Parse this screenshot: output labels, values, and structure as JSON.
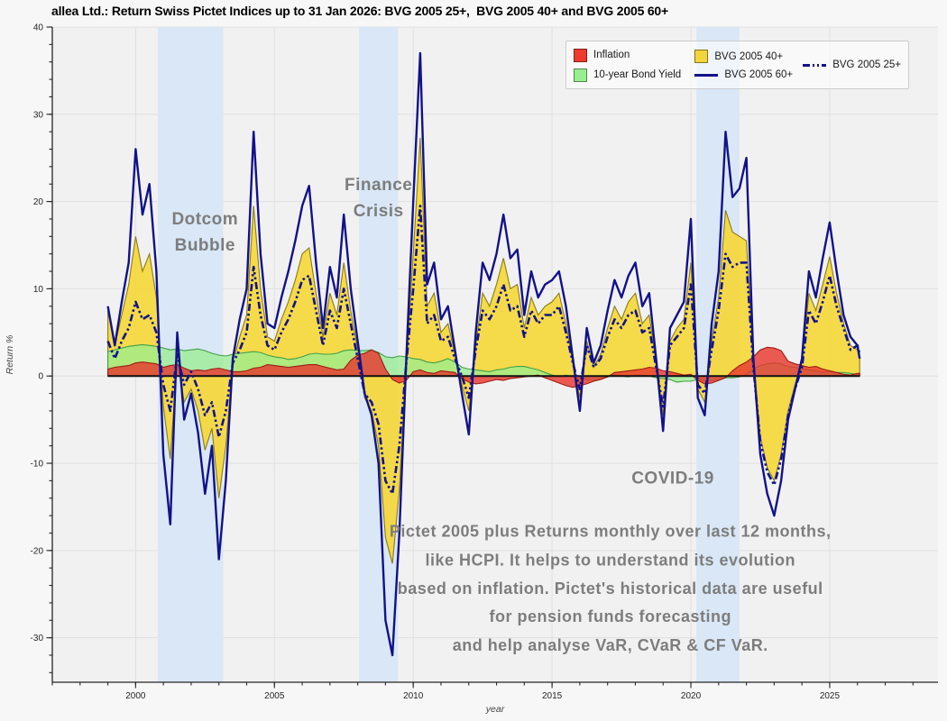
{
  "header": {
    "title": "allea Ltd.: Return Swiss Pictet Indices up to 31 Jan 2026: BVG 2005 25+,  BVG 2005 40+ and BVG 2005 60+"
  },
  "legend": {
    "items": [
      {
        "id": "inflation",
        "label": "Inflation",
        "swatch": "patch",
        "color": "#ee3a31"
      },
      {
        "id": "bond-yield",
        "label": "10-year Bond Yield",
        "swatch": "patch",
        "color": "#98ee90"
      },
      {
        "id": "bvg40",
        "label": "BVG 2005 40+",
        "swatch": "patch",
        "color": "#f2d43c"
      },
      {
        "id": "bvg60",
        "label": "BVG 2005 60+",
        "swatch": "line",
        "color": "#12128a"
      },
      {
        "id": "bvg25",
        "label": "BVG 2005 25+",
        "swatch": "dashline",
        "color": "#12128a"
      }
    ]
  },
  "annotations": [
    {
      "id": "dotcom",
      "lines": [
        "Dotcom",
        "Bubble"
      ],
      "x": 2002.5,
      "y": [
        17.4,
        14.4
      ],
      "size": 19,
      "color": "#7d7d7d"
    },
    {
      "id": "finance-crisis",
      "lines": [
        "Finance",
        "Crisis"
      ],
      "x": 2008.75,
      "y": [
        21.3,
        18.3
      ],
      "size": 19,
      "color": "#7d7d7d"
    },
    {
      "id": "covid",
      "lines": [
        "COVID-19"
      ],
      "x": 2019.35,
      "y": [
        -12.3
      ],
      "size": 19,
      "color": "#7d7d7d"
    },
    {
      "id": "caption",
      "lines": [
        "Pictet 2005 plus Returns monthly over last 12 months,",
        "like HCPI. It helps to understand its evolution",
        "based on inflation. Pictet's historical data are useful",
        "for pension funds forecasting",
        "and help analyse VaR, CVaR & CF VaR."
      ],
      "x": 2017.1,
      "y": [
        -18.4,
        -21.7,
        -25.0,
        -28.2,
        -31.5
      ],
      "size": 18,
      "color": "#7d7d7d"
    }
  ],
  "chart_data": {
    "type": "area+line",
    "title": "allea Ltd.: Return Swiss Pictet Indices up to 31 Jan 2026: BVG 2005 25+,  BVG 2005 40+ and BVG 2005 60+",
    "xlabel": "year",
    "ylabel": "Return %",
    "xlim": [
      1997.0,
      2028.9
    ],
    "ylim": [
      -35.1,
      40
    ],
    "x_ticks": [
      2000,
      2005,
      2010,
      2015,
      2020,
      2025
    ],
    "y_ticks": [
      -30,
      -20,
      -10,
      0,
      10,
      20,
      30,
      40
    ],
    "x_minor_step": 1,
    "y_minor_step": 2,
    "grid": true,
    "legend_position": "upper right",
    "band_color": "#d9e7f6",
    "bands": [
      {
        "label": "Dotcom Bubble",
        "from": 2000.8,
        "to": 2003.15
      },
      {
        "label": "Finance Crisis",
        "from": 2008.05,
        "to": 2009.45
      },
      {
        "label": "COVID-19",
        "from": 2020.2,
        "to": 2021.75
      }
    ],
    "x": [
      1999,
      1999.25,
      1999.5,
      1999.75,
      2000,
      2000.25,
      2000.5,
      2000.75,
      2001,
      2001.25,
      2001.5,
      2001.75,
      2002,
      2002.25,
      2002.5,
      2002.75,
      2003,
      2003.25,
      2003.5,
      2003.75,
      2004,
      2004.25,
      2004.5,
      2004.75,
      2005,
      2005.25,
      2005.5,
      2005.75,
      2006,
      2006.25,
      2006.5,
      2006.75,
      2007,
      2007.25,
      2007.5,
      2007.75,
      2008,
      2008.25,
      2008.5,
      2008.75,
      2009,
      2009.25,
      2009.5,
      2009.75,
      2010,
      2010.25,
      2010.5,
      2010.75,
      2011,
      2011.25,
      2011.5,
      2011.75,
      2012,
      2012.25,
      2012.5,
      2012.75,
      2013,
      2013.25,
      2013.5,
      2013.75,
      2014,
      2014.25,
      2014.5,
      2014.75,
      2015,
      2015.25,
      2015.5,
      2015.75,
      2016,
      2016.25,
      2016.5,
      2016.75,
      2017,
      2017.25,
      2017.5,
      2017.75,
      2018,
      2018.25,
      2018.5,
      2018.75,
      2019,
      2019.25,
      2019.5,
      2019.75,
      2020,
      2020.25,
      2020.5,
      2020.75,
      2021,
      2021.25,
      2021.5,
      2021.75,
      2022,
      2022.25,
      2022.5,
      2022.75,
      2023,
      2023.25,
      2023.5,
      2023.75,
      2024,
      2024.25,
      2024.5,
      2024.75,
      2025,
      2025.25,
      2025.5,
      2025.75,
      2026,
      2026.08
    ],
    "series": [
      {
        "name": "BVG 2005 40+",
        "type": "area",
        "color": "#f5d737",
        "edge": "#8a7c15",
        "opacity": 0.9,
        "values": [
          7.5,
          3.5,
          7,
          10.5,
          16,
          12,
          14,
          9,
          -3.5,
          -9.5,
          2,
          -3,
          -1.5,
          -4,
          -8.5,
          -6,
          -14,
          -8,
          1.5,
          4.5,
          7,
          19.5,
          10,
          4.5,
          4,
          6.5,
          8.5,
          11,
          14,
          14.7,
          9.5,
          4.5,
          9.5,
          7,
          13,
          7.5,
          3,
          -2.5,
          -4,
          -8,
          -18.5,
          -21.5,
          -13,
          1.5,
          14,
          27.3,
          8,
          9.5,
          5,
          6,
          2.5,
          -1,
          -4,
          3.5,
          9.5,
          8,
          10.5,
          13.5,
          10,
          10.5,
          5.5,
          9,
          7,
          8,
          8.5,
          9.5,
          6,
          1.5,
          -2.5,
          4,
          1,
          2.5,
          5.5,
          8,
          6.5,
          8.5,
          9.5,
          6,
          7,
          1.5,
          -4.5,
          4,
          5.5,
          6.5,
          13,
          -1.5,
          -3,
          4,
          9,
          19,
          16.5,
          16,
          15.5,
          1.5,
          -7,
          -10.5,
          -12,
          -9,
          -4,
          -1,
          1.5,
          9.5,
          7.5,
          10.5,
          13.7,
          9.5,
          6,
          3.5,
          3,
          2
        ]
      },
      {
        "name": "10-year Bond Yield",
        "type": "area",
        "color": "#98ee90",
        "edge": "#43a047",
        "opacity": 0.75,
        "values": [
          2.8,
          3,
          3.2,
          3.4,
          3.5,
          3.6,
          3.5,
          3.4,
          3.2,
          3,
          3.1,
          2.9,
          3,
          3.1,
          2.9,
          2.6,
          2.4,
          2.3,
          2.5,
          2.6,
          2.7,
          2.8,
          2.7,
          2.4,
          2.2,
          2.1,
          1.9,
          2,
          2.2,
          2.5,
          2.6,
          2.5,
          2.5,
          2.6,
          2.9,
          3,
          2.9,
          2.9,
          3,
          2.7,
          2.2,
          2.1,
          2.3,
          2.2,
          2,
          1.9,
          1.6,
          1.5,
          1.7,
          2,
          1.6,
          1,
          0.8,
          0.7,
          0.6,
          0.5,
          0.7,
          0.8,
          1,
          1.1,
          1.1,
          0.9,
          0.7,
          0.4,
          0.1,
          -0.1,
          0.1,
          -0.1,
          -0.3,
          -0.4,
          -0.5,
          -0.3,
          -0.1,
          0.1,
          0,
          -0.1,
          0.1,
          0.1,
          0,
          -0.2,
          -0.3,
          -0.4,
          -0.7,
          -0.6,
          -0.6,
          -0.4,
          -0.5,
          -0.5,
          -0.4,
          -0.2,
          -0.2,
          -0.1,
          0.2,
          0.8,
          1.2,
          1.4,
          1.5,
          1.4,
          1.1,
          1,
          0.8,
          0.7,
          0.6,
          0.4,
          0.5,
          0.4,
          0.4,
          0.3,
          0.2,
          0.2
        ]
      },
      {
        "name": "Inflation",
        "type": "area",
        "color": "#e8352c",
        "edge": "#9b1d14",
        "opacity": 0.8,
        "values": [
          0.8,
          1,
          1.1,
          1.2,
          1.5,
          1.6,
          1.5,
          1.4,
          1,
          1.2,
          1.3,
          0.9,
          0.6,
          0.7,
          0.6,
          0.8,
          0.9,
          0.7,
          0.5,
          0.5,
          0.6,
          0.9,
          1,
          1.3,
          1.2,
          1.1,
          1,
          1.1,
          1.2,
          1.3,
          1.3,
          1.1,
          0.9,
          0.7,
          0.8,
          1.8,
          2.4,
          2.6,
          3,
          2.6,
          0.8,
          -0.4,
          -0.8,
          -0.5,
          0.5,
          0.7,
          0.4,
          0.3,
          0.6,
          0.5,
          0.4,
          -0.3,
          -0.7,
          -0.9,
          -0.8,
          -0.6,
          -0.4,
          -0.5,
          -0.3,
          -0.2,
          -0.1,
          0,
          0.1,
          -0.2,
          -0.5,
          -0.8,
          -1.1,
          -1.3,
          -1.1,
          -0.9,
          -0.6,
          -0.4,
          -0.1,
          0.4,
          0.5,
          0.6,
          0.7,
          0.8,
          1,
          0.9,
          0.6,
          0.5,
          0.3,
          0.1,
          0.2,
          -0.5,
          -0.9,
          -0.8,
          -0.5,
          -0.2,
          0.6,
          1.2,
          1.6,
          2.2,
          3,
          3.3,
          3.2,
          2.9,
          1.7,
          1.4,
          1.2,
          1,
          1.1,
          0.8,
          0.6,
          0.4,
          0.2,
          0.1,
          0.3,
          0.3
        ]
      },
      {
        "name": "BVG 2005 60+",
        "type": "line",
        "color": "#12128a",
        "width": 2.4,
        "values": [
          8,
          3.5,
          8.5,
          13,
          26,
          18.5,
          22,
          12,
          -9,
          -17,
          5,
          -5,
          -2,
          -6.5,
          -13.5,
          -8,
          -21,
          -12,
          2,
          6.5,
          10,
          28,
          14,
          6,
          5.5,
          9,
          12,
          15.5,
          19.5,
          21.8,
          13,
          5.5,
          12.5,
          9,
          18.5,
          10,
          4,
          -2,
          -4.5,
          -10,
          -28,
          -32,
          -18,
          2,
          20,
          37,
          10.5,
          13,
          6.5,
          8,
          3,
          -2,
          -6.7,
          5,
          13,
          11,
          14,
          18.5,
          13.5,
          14.5,
          7,
          12,
          9,
          10.5,
          11,
          12,
          8,
          2,
          -4,
          5.5,
          1.5,
          3.5,
          7.5,
          11,
          9,
          11.5,
          13,
          8,
          9.5,
          2,
          -6.3,
          5.5,
          7,
          8.5,
          18,
          -2.5,
          -4.5,
          6,
          12,
          28,
          20.5,
          21.5,
          25,
          2,
          -9,
          -13.5,
          -16,
          -12,
          -5,
          -1.5,
          2,
          12,
          9,
          13.5,
          17.6,
          12,
          7,
          4.5,
          3.5,
          2
        ]
      },
      {
        "name": "BVG 2005 25+",
        "type": "line",
        "color": "#12128a",
        "width": 2.6,
        "dash": "8 3 2.5 3 2.5 3",
        "values": [
          4,
          2,
          4,
          5.5,
          8.5,
          6.5,
          7,
          5,
          -1,
          -4,
          2.5,
          -1,
          0.5,
          -1.5,
          -4.5,
          -3,
          -7,
          -4,
          1.5,
          3,
          5,
          12.5,
          7,
          3.5,
          3,
          5,
          6.5,
          8.5,
          11,
          11.5,
          7.5,
          3.5,
          7.5,
          5.5,
          10,
          6,
          2,
          -2,
          -3,
          -5.5,
          -12,
          -13.5,
          -8,
          1.5,
          10,
          19.5,
          6,
          7,
          4,
          4.5,
          2,
          0,
          -2.5,
          3,
          7.5,
          6.5,
          8,
          10.5,
          7.5,
          8,
          4.5,
          7.5,
          6,
          7,
          7,
          8,
          5,
          1.5,
          -1.5,
          3.5,
          1,
          2,
          4.5,
          6.5,
          5.5,
          7,
          7.5,
          5,
          5.5,
          1,
          -3.5,
          3.5,
          4.5,
          5.5,
          10.5,
          -1,
          -2,
          3,
          7.5,
          14,
          12.5,
          13,
          13,
          1,
          -7.5,
          -11,
          -12.5,
          -9.5,
          -4.5,
          -1.5,
          1,
          7.5,
          6,
          8.5,
          11.5,
          8,
          5.5,
          3,
          3.5,
          2.5
        ]
      }
    ]
  }
}
